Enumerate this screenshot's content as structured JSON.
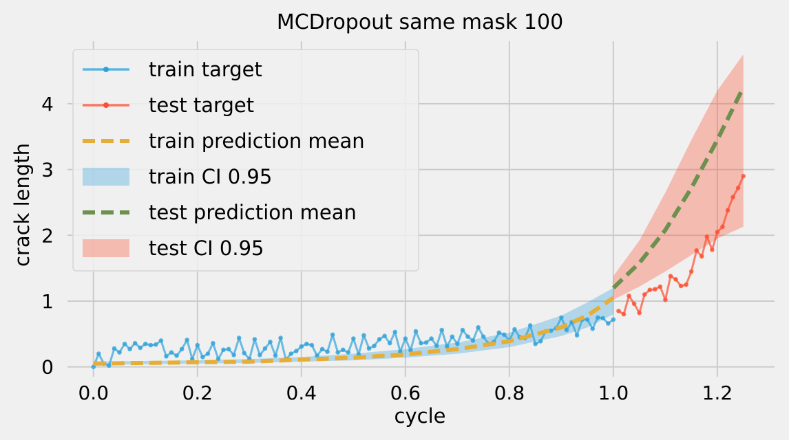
{
  "chart_data": {
    "type": "line",
    "title": "MCDropout same mask 100",
    "xlabel": "cycle",
    "ylabel": "crack length",
    "xlim": [
      -0.05,
      1.31
    ],
    "ylim": [
      -0.15,
      4.95
    ],
    "xticks": [
      0.0,
      0.2,
      0.4,
      0.6,
      0.8,
      1.0,
      1.2
    ],
    "xtick_labels": [
      "0.0",
      "0.2",
      "0.4",
      "0.6",
      "0.8",
      "1.0",
      "1.2"
    ],
    "yticks": [
      0,
      1,
      2,
      3,
      4
    ],
    "ytick_labels": [
      "0",
      "1",
      "2",
      "3",
      "4"
    ],
    "grid": true,
    "legend_position": "upper-left",
    "colors": {
      "train_target": "#30a2da",
      "test_target": "#fc4f30",
      "train_prediction_mean": "#e5ae38",
      "train_ci": "#30a2da",
      "test_prediction_mean": "#6d904f",
      "test_ci": "#fc4f30"
    },
    "legend": [
      {
        "label": "train target",
        "kind": "line-marker",
        "color": "#30a2da"
      },
      {
        "label": "test target",
        "kind": "line-marker",
        "color": "#fc4f30"
      },
      {
        "label": "train prediction mean",
        "kind": "dashed",
        "color": "#e5ae38"
      },
      {
        "label": "train CI 0.95",
        "kind": "patch",
        "color": "#30a2da"
      },
      {
        "label": "test prediction mean",
        "kind": "dashed",
        "color": "#6d904f"
      },
      {
        "label": "test CI 0.95",
        "kind": "patch",
        "color": "#fc4f30"
      }
    ],
    "series": [
      {
        "name": "train target",
        "type": "line-marker",
        "x": [
          0.0,
          0.01,
          0.02,
          0.03,
          0.04,
          0.05,
          0.06,
          0.07,
          0.08,
          0.09,
          0.1,
          0.11,
          0.12,
          0.13,
          0.14,
          0.15,
          0.16,
          0.17,
          0.18,
          0.19,
          0.2,
          0.21,
          0.22,
          0.23,
          0.24,
          0.25,
          0.26,
          0.27,
          0.28,
          0.29,
          0.3,
          0.31,
          0.32,
          0.33,
          0.34,
          0.35,
          0.36,
          0.37,
          0.38,
          0.39,
          0.4,
          0.41,
          0.42,
          0.43,
          0.44,
          0.45,
          0.46,
          0.47,
          0.48,
          0.49,
          0.5,
          0.51,
          0.52,
          0.53,
          0.54,
          0.55,
          0.56,
          0.57,
          0.58,
          0.59,
          0.6,
          0.61,
          0.62,
          0.63,
          0.64,
          0.65,
          0.66,
          0.67,
          0.68,
          0.69,
          0.7,
          0.71,
          0.72,
          0.73,
          0.74,
          0.75,
          0.76,
          0.77,
          0.78,
          0.79,
          0.8,
          0.81,
          0.82,
          0.83,
          0.84,
          0.85,
          0.86,
          0.87,
          0.88,
          0.89,
          0.9,
          0.91,
          0.92,
          0.93,
          0.94,
          0.95,
          0.96,
          0.97,
          0.98,
          0.99,
          1.0
        ],
        "y": [
          0.0,
          0.2,
          0.05,
          0.02,
          0.28,
          0.22,
          0.35,
          0.27,
          0.36,
          0.29,
          0.35,
          0.33,
          0.34,
          0.4,
          0.16,
          0.22,
          0.17,
          0.27,
          0.41,
          0.12,
          0.33,
          0.15,
          0.2,
          0.36,
          0.12,
          0.26,
          0.27,
          0.18,
          0.44,
          0.21,
          0.12,
          0.42,
          0.18,
          0.28,
          0.38,
          0.17,
          0.44,
          0.11,
          0.2,
          0.24,
          0.31,
          0.35,
          0.33,
          0.17,
          0.27,
          0.23,
          0.49,
          0.22,
          0.26,
          0.22,
          0.43,
          0.19,
          0.48,
          0.28,
          0.32,
          0.42,
          0.47,
          0.36,
          0.53,
          0.23,
          0.43,
          0.25,
          0.54,
          0.36,
          0.37,
          0.43,
          0.32,
          0.56,
          0.31,
          0.46,
          0.35,
          0.56,
          0.46,
          0.4,
          0.6,
          0.46,
          0.35,
          0.38,
          0.52,
          0.49,
          0.4,
          0.57,
          0.45,
          0.44,
          0.63,
          0.35,
          0.39,
          0.54,
          0.55,
          0.59,
          0.75,
          0.56,
          0.68,
          0.48,
          0.72,
          0.72,
          0.58,
          0.75,
          0.74,
          0.66,
          0.72
        ]
      },
      {
        "name": "test target",
        "type": "line-marker",
        "x": [
          1.01,
          1.02,
          1.03,
          1.04,
          1.05,
          1.06,
          1.07,
          1.08,
          1.09,
          1.1,
          1.11,
          1.12,
          1.13,
          1.14,
          1.15,
          1.16,
          1.17,
          1.18,
          1.19,
          1.2,
          1.21,
          1.22,
          1.23,
          1.24,
          1.25
        ],
        "y": [
          0.85,
          0.8,
          1.08,
          0.96,
          0.82,
          1.1,
          1.17,
          1.18,
          1.22,
          1.02,
          1.38,
          1.33,
          1.23,
          1.25,
          1.45,
          1.77,
          1.68,
          1.98,
          1.78,
          2.05,
          2.13,
          2.38,
          2.58,
          2.72,
          2.9
        ]
      }
    ],
    "train_prediction_mean": {
      "name": "train prediction mean",
      "type": "dashed-line",
      "x": [
        0.0,
        0.1,
        0.2,
        0.3,
        0.4,
        0.5,
        0.6,
        0.7,
        0.8,
        0.9,
        0.95,
        1.0
      ],
      "y": [
        0.05,
        0.06,
        0.07,
        0.08,
        0.11,
        0.14,
        0.19,
        0.27,
        0.39,
        0.6,
        0.78,
        1.05
      ]
    },
    "train_ci": {
      "name": "train CI 0.95",
      "type": "area",
      "x": [
        0.0,
        0.1,
        0.2,
        0.3,
        0.4,
        0.5,
        0.6,
        0.7,
        0.8,
        0.9,
        0.95,
        1.0
      ],
      "lower": [
        0.03,
        0.04,
        0.05,
        0.06,
        0.08,
        0.1,
        0.14,
        0.2,
        0.3,
        0.47,
        0.6,
        0.8
      ],
      "upper": [
        0.08,
        0.09,
        0.1,
        0.12,
        0.15,
        0.2,
        0.27,
        0.37,
        0.52,
        0.78,
        0.98,
        1.2
      ]
    },
    "test_prediction_mean": {
      "name": "test prediction mean",
      "type": "dashed-line",
      "x": [
        1.0,
        1.05,
        1.1,
        1.15,
        1.2,
        1.25
      ],
      "y": [
        1.2,
        1.58,
        2.08,
        2.72,
        3.45,
        4.25
      ]
    },
    "test_ci": {
      "name": "test CI 0.95",
      "type": "area",
      "x": [
        1.0,
        1.05,
        1.1,
        1.15,
        1.2,
        1.25
      ],
      "lower": [
        1.02,
        1.22,
        1.45,
        1.7,
        1.95,
        2.13
      ],
      "upper": [
        1.38,
        1.92,
        2.65,
        3.45,
        4.2,
        4.75
      ]
    }
  }
}
